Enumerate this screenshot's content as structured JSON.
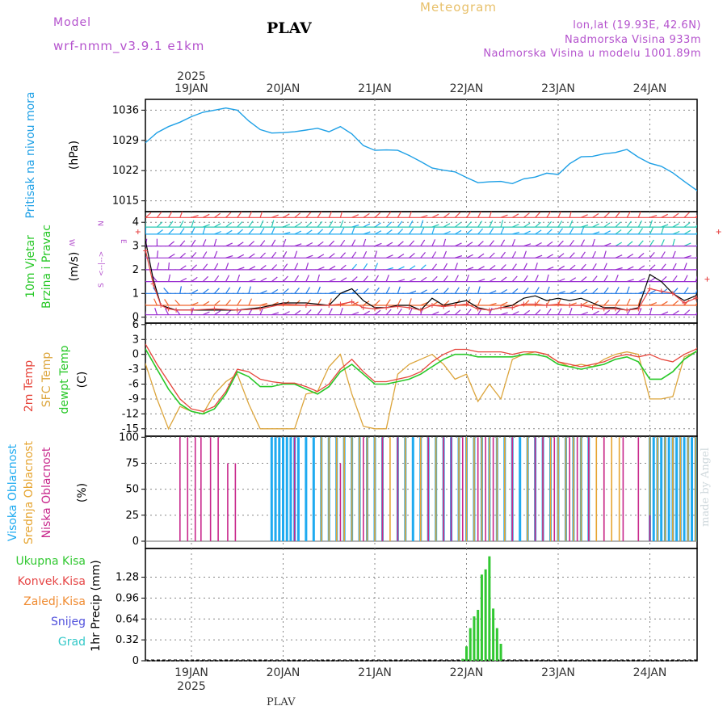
{
  "header": {
    "model_label": "Model",
    "model_name": "wrf-nmm_v3.9.1 e1km",
    "station": "PLAV",
    "title": "Meteogram",
    "lonlat": "lon,lat (19.93E, 42.6N)",
    "elevation": "Nadmorska Visina 933m",
    "model_elevation": "Nadmorska Visina u modelu 1001.89m"
  },
  "footer": {
    "station": "PLAV",
    "watermark": "made by Angel"
  },
  "time_axis": {
    "year": "2025",
    "days": [
      "19JAN",
      "20JAN",
      "21JAN",
      "22JAN",
      "23JAN",
      "24JAN"
    ]
  },
  "colors": {
    "pressure": "#1ea0e6",
    "temp2m": "#e6463c",
    "sfc": "#dca53c",
    "dewpt": "#28c828",
    "high_cloud": "#1eaaf0",
    "mid_cloud": "#e6a532",
    "low_cloud": "#c8288c",
    "precip": "#32c832",
    "wind_speed": "#000000",
    "gust": "#e64646",
    "wind_legend": "#b452cd"
  },
  "chart_data": [
    {
      "type": "line",
      "panel": "pressure",
      "ylabel_lines": [
        "Pritisak na nivou mora",
        "(hPa)"
      ],
      "yticks": [
        1015,
        1022,
        1029,
        1036
      ],
      "ylim": [
        1012.5,
        1038.5
      ],
      "x_unit": "hours since 19JAN 00Z",
      "series": [
        {
          "x": [
            -14,
            -12,
            -9,
            -6,
            -3,
            0,
            3,
            6,
            9,
            12,
            15,
            18,
            21,
            24,
            27,
            30,
            33,
            36,
            39,
            42,
            45,
            48,
            51,
            54,
            57,
            60,
            63,
            66,
            69,
            72,
            75,
            78,
            81,
            84,
            87,
            90,
            93,
            96,
            99,
            102,
            105,
            108,
            111,
            114,
            117,
            120,
            123,
            126,
            129,
            132,
            135,
            138
          ],
          "values": [
            1027.3,
            1028.5,
            1030.8,
            1032.2,
            1033.2,
            1034.5,
            1035.5,
            1036.0,
            1036.5,
            1036.0,
            1033.5,
            1031.5,
            1030.7,
            1030.8,
            1031.0,
            1031.4,
            1031.8,
            1031.0,
            1032.2,
            1030.5,
            1027.8,
            1026.7,
            1026.8,
            1026.7,
            1025.5,
            1024.1,
            1022.6,
            1022.1,
            1021.7,
            1020.4,
            1019.2,
            1019.4,
            1019.5,
            1019.0,
            1020.1,
            1020.5,
            1021.4,
            1021.1,
            1023.6,
            1025.2,
            1025.3,
            1025.9,
            1026.2,
            1026.9,
            1025.1,
            1023.7,
            1023.0,
            1021.5,
            1019.5,
            1017.6,
            1015.6,
            1014.3
          ]
        }
      ]
    },
    {
      "type": "line",
      "panel": "wind",
      "ylabel_lines": [
        "10m Vjetar",
        "Brzina i Pravac",
        "(m/s)"
      ],
      "compass_legend": {
        "west": "W",
        "east": "E",
        "north": "N",
        "south": "S",
        "arrow": "<--|-->"
      },
      "yticks": [
        0,
        1,
        2,
        3,
        4
      ],
      "ylim": [
        -0.25,
        4.45
      ],
      "barb_rows": [
        0.1,
        0.5,
        1.0,
        1.5,
        2.0,
        2.5,
        3.0,
        3.5,
        3.8,
        4.2
      ],
      "series": [
        {
          "name": "speed",
          "x": [
            -14,
            -12,
            -10,
            -8,
            -6,
            -4,
            0,
            6,
            12,
            18,
            24,
            30,
            36,
            39,
            42,
            45,
            48,
            51,
            54,
            57,
            60,
            63,
            66,
            69,
            72,
            75,
            78,
            81,
            84,
            87,
            90,
            93,
            96,
            99,
            102,
            105,
            108,
            111,
            114,
            117,
            120,
            123,
            126,
            129,
            132,
            135,
            138
          ],
          "values": [
            4.0,
            3.2,
            1.6,
            0.5,
            0.4,
            0.3,
            0.3,
            0.3,
            0.3,
            0.4,
            0.6,
            0.6,
            0.5,
            1.0,
            1.2,
            0.7,
            0.4,
            0.4,
            0.5,
            0.5,
            0.3,
            0.8,
            0.5,
            0.6,
            0.7,
            0.4,
            0.3,
            0.4,
            0.5,
            0.8,
            0.9,
            0.7,
            0.8,
            0.7,
            0.8,
            0.6,
            0.4,
            0.4,
            0.3,
            0.4,
            1.8,
            1.5,
            1.0,
            0.7,
            0.9,
            1.8,
            3.8
          ]
        },
        {
          "name": "gust",
          "x": [
            -14,
            -12,
            -10,
            -8,
            -6,
            -4,
            0,
            6,
            12,
            18,
            24,
            30,
            36,
            39,
            42,
            45,
            48,
            51,
            54,
            57,
            60,
            63,
            66,
            69,
            72,
            75,
            78,
            81,
            84,
            87,
            90,
            93,
            96,
            99,
            102,
            105,
            108,
            111,
            114,
            117,
            120,
            123,
            126,
            129,
            132,
            135,
            138
          ],
          "values": [
            3.6,
            2.8,
            1.4,
            0.5,
            0.35,
            0.3,
            0.3,
            0.35,
            0.3,
            0.35,
            0.55,
            0.5,
            0.5,
            0.55,
            0.65,
            0.4,
            0.35,
            0.4,
            0.45,
            0.4,
            0.3,
            0.5,
            0.45,
            0.5,
            0.55,
            0.35,
            0.3,
            0.4,
            0.4,
            0.55,
            0.55,
            0.5,
            0.55,
            0.5,
            0.5,
            0.4,
            0.35,
            0.35,
            0.3,
            0.35,
            1.2,
            1.1,
            1.0,
            0.6,
            0.8,
            1.6,
            3.6
          ]
        }
      ]
    },
    {
      "type": "line",
      "panel": "temperature",
      "ylabel_lines": [
        "2m Temp",
        "SFC Temp",
        "dewpt Temp",
        "(C)"
      ],
      "yticks": [
        -15,
        -12,
        -9,
        -6,
        -3,
        0,
        3,
        6
      ],
      "ylim": [
        -16.5,
        6.3
      ],
      "series": [
        {
          "name": "2m Temp",
          "x": [
            -14,
            -12,
            -9,
            -6,
            -3,
            0,
            3,
            6,
            9,
            12,
            15,
            18,
            21,
            24,
            27,
            30,
            33,
            36,
            39,
            42,
            45,
            48,
            51,
            54,
            57,
            60,
            63,
            66,
            69,
            72,
            75,
            78,
            81,
            84,
            87,
            90,
            93,
            96,
            99,
            102,
            105,
            108,
            111,
            114,
            117,
            120,
            123,
            126,
            129,
            132,
            135,
            138
          ],
          "values": [
            2.5,
            2.0,
            -2.0,
            -5.5,
            -9.0,
            -11.0,
            -11.5,
            -10.5,
            -7.5,
            -3.0,
            -3.5,
            -5.0,
            -5.5,
            -5.8,
            -5.8,
            -6.5,
            -7.5,
            -6.0,
            -3.0,
            -1.0,
            -3.5,
            -5.5,
            -5.5,
            -5.0,
            -4.5,
            -3.5,
            -1.5,
            0.0,
            1.0,
            1.0,
            0.5,
            0.5,
            0.5,
            0.0,
            0.5,
            0.5,
            0.0,
            -1.5,
            -2.0,
            -2.5,
            -2.0,
            -1.5,
            -0.5,
            0.0,
            -0.5,
            0.0,
            -1.0,
            -1.5,
            0.0,
            1.0,
            3.0,
            5.0
          ]
        },
        {
          "name": "SFC Temp",
          "x": [
            -14,
            -12,
            -9,
            -6,
            -3,
            0,
            3,
            6,
            9,
            12,
            15,
            18,
            21,
            24,
            27,
            30,
            33,
            36,
            39,
            42,
            45,
            48,
            51,
            54,
            57,
            60,
            63,
            66,
            69,
            72,
            75,
            78,
            81,
            84,
            87,
            90,
            93,
            96,
            99,
            102,
            105,
            108,
            111,
            114,
            117,
            120,
            123,
            126,
            129,
            132,
            135,
            138
          ],
          "values": [
            1.0,
            -2.0,
            -9.0,
            -15.0,
            -10.5,
            -11.5,
            -12.0,
            -8.0,
            -5.5,
            -4.0,
            -10.0,
            -15.0,
            -15.0,
            -15.0,
            -15.0,
            -8.0,
            -7.5,
            -2.5,
            0.0,
            -8.0,
            -14.5,
            -15.0,
            -15.0,
            -4.0,
            -2.0,
            -1.0,
            0.0,
            -2.0,
            -5.0,
            -4.0,
            -9.5,
            -6.0,
            -9.0,
            -1.0,
            0.0,
            0.5,
            0.0,
            -1.5,
            -2.5,
            -2.0,
            -2.5,
            -1.0,
            0.0,
            0.5,
            0.0,
            -9.0,
            -9.0,
            -8.5,
            -0.5,
            0.5,
            1.0,
            1.0
          ]
        },
        {
          "name": "dewpt Temp",
          "x": [
            -14,
            -12,
            -9,
            -6,
            -3,
            0,
            3,
            6,
            9,
            12,
            15,
            18,
            21,
            24,
            27,
            30,
            33,
            36,
            39,
            42,
            45,
            48,
            51,
            54,
            57,
            60,
            63,
            66,
            69,
            72,
            75,
            78,
            81,
            84,
            87,
            90,
            93,
            96,
            99,
            102,
            105,
            108,
            111,
            114,
            117,
            120,
            123,
            126,
            129,
            132,
            135,
            138
          ],
          "values": [
            2.0,
            1.0,
            -3.0,
            -7.0,
            -10.0,
            -11.5,
            -12.0,
            -11.0,
            -8.0,
            -3.5,
            -4.5,
            -6.5,
            -6.5,
            -6.0,
            -6.0,
            -7.0,
            -8.0,
            -6.5,
            -3.5,
            -2.0,
            -4.0,
            -6.0,
            -6.0,
            -5.5,
            -5.0,
            -4.0,
            -2.5,
            -1.0,
            0.0,
            0.0,
            -0.5,
            -0.5,
            -0.5,
            -0.5,
            0.0,
            0.0,
            -0.5,
            -2.0,
            -2.5,
            -3.0,
            -2.5,
            -2.0,
            -1.0,
            -0.5,
            -1.5,
            -5.0,
            -5.0,
            -3.5,
            -1.0,
            0.5,
            2.5,
            4.5
          ]
        }
      ]
    },
    {
      "type": "bar",
      "panel": "clouds",
      "ylabel_lines": [
        "Visoka Oblacnost",
        "Srednja Oblacnost",
        "Niska Oblacnost",
        "(%)"
      ],
      "yticks": [
        0,
        25,
        50,
        75,
        100
      ],
      "ylim": [
        -7,
        101
      ],
      "series": [
        {
          "name": "Niska Oblacnost",
          "x": [
            -3,
            -1,
            1,
            2.5,
            5,
            7,
            9.5,
            11.5,
            27,
            39,
            45,
            50,
            54,
            62,
            66,
            68,
            71,
            75,
            77,
            79,
            84,
            90,
            92,
            95,
            99,
            101,
            104,
            108,
            113,
            117,
            120
          ],
          "values": [
            100,
            100,
            100,
            100,
            100,
            100,
            75,
            75,
            100,
            75,
            100,
            100,
            100,
            100,
            100,
            100,
            100,
            100,
            100,
            100,
            100,
            100,
            100,
            100,
            100,
            100,
            100,
            100,
            100,
            100,
            25
          ]
        },
        {
          "name": "Srednja Oblacnost",
          "x": [
            34,
            36,
            38,
            40,
            42,
            44,
            46,
            48,
            50,
            52,
            54,
            56,
            60,
            62,
            64,
            66,
            70,
            72,
            74,
            76,
            78,
            80,
            82,
            84,
            88,
            90,
            92,
            94,
            96,
            98,
            100,
            102,
            104,
            106,
            108,
            110,
            112,
            120,
            122,
            124,
            126,
            128,
            130,
            132,
            134,
            136
          ],
          "values": [
            100,
            100,
            100,
            100,
            100,
            100,
            100,
            100,
            100,
            100,
            100,
            100,
            100,
            100,
            100,
            100,
            100,
            100,
            100,
            100,
            100,
            100,
            100,
            100,
            100,
            100,
            100,
            100,
            100,
            100,
            100,
            100,
            100,
            100,
            100,
            100,
            100,
            100,
            100,
            100,
            100,
            100,
            100,
            100,
            100,
            100
          ]
        },
        {
          "name": "Visoka Oblacnost",
          "x": [
            21,
            22,
            23,
            24,
            25,
            26,
            27,
            28,
            30,
            32,
            34,
            36,
            38,
            40,
            42,
            44,
            46,
            48,
            50,
            54,
            56,
            58,
            60,
            62,
            64,
            66,
            68,
            70,
            72,
            74,
            76,
            78,
            80,
            82,
            84,
            86,
            88,
            90,
            92,
            94,
            96,
            98,
            100,
            102,
            104,
            120,
            121,
            122,
            123,
            124,
            125,
            126,
            127,
            128,
            129,
            130,
            131,
            132,
            133,
            134,
            135,
            136,
            137,
            138
          ],
          "values": [
            100,
            100,
            100,
            100,
            100,
            100,
            100,
            100,
            100,
            100,
            100,
            100,
            100,
            100,
            100,
            100,
            100,
            100,
            100,
            100,
            100,
            100,
            100,
            100,
            100,
            100,
            100,
            100,
            100,
            100,
            100,
            100,
            100,
            100,
            100,
            100,
            100,
            100,
            100,
            100,
            100,
            100,
            100,
            100,
            100,
            100,
            100,
            100,
            100,
            100,
            100,
            100,
            100,
            100,
            100,
            100,
            100,
            100,
            100,
            100,
            100,
            100,
            100,
            100
          ]
        }
      ]
    },
    {
      "type": "bar",
      "panel": "precip",
      "ylabel_lines": [
        "1hr Precip (mm)"
      ],
      "legend": [
        "Ukupna Kisa",
        "Konvek.Kisa",
        "Zaledj.Kisa",
        "Snijeg",
        "Grad"
      ],
      "legend_colors": [
        "#32c832",
        "#e64646",
        "#f08c32",
        "#5050dc",
        "#32c8c8"
      ],
      "yticks": [
        0,
        0.32,
        0.64,
        0.96,
        1.28
      ],
      "yticks_labels": [
        "0",
        "0.32",
        "0.64",
        "0.96",
        "1.28"
      ],
      "ylim": [
        0,
        1.72
      ],
      "series": [
        {
          "name": "Ukupna Kisa",
          "x": [
            71,
            72,
            73,
            74,
            75,
            76,
            77,
            78,
            79,
            80,
            81
          ],
          "values": [
            0.03,
            0.22,
            0.5,
            0.68,
            0.78,
            1.32,
            1.4,
            1.6,
            0.8,
            0.5,
            0.26
          ]
        }
      ]
    }
  ]
}
